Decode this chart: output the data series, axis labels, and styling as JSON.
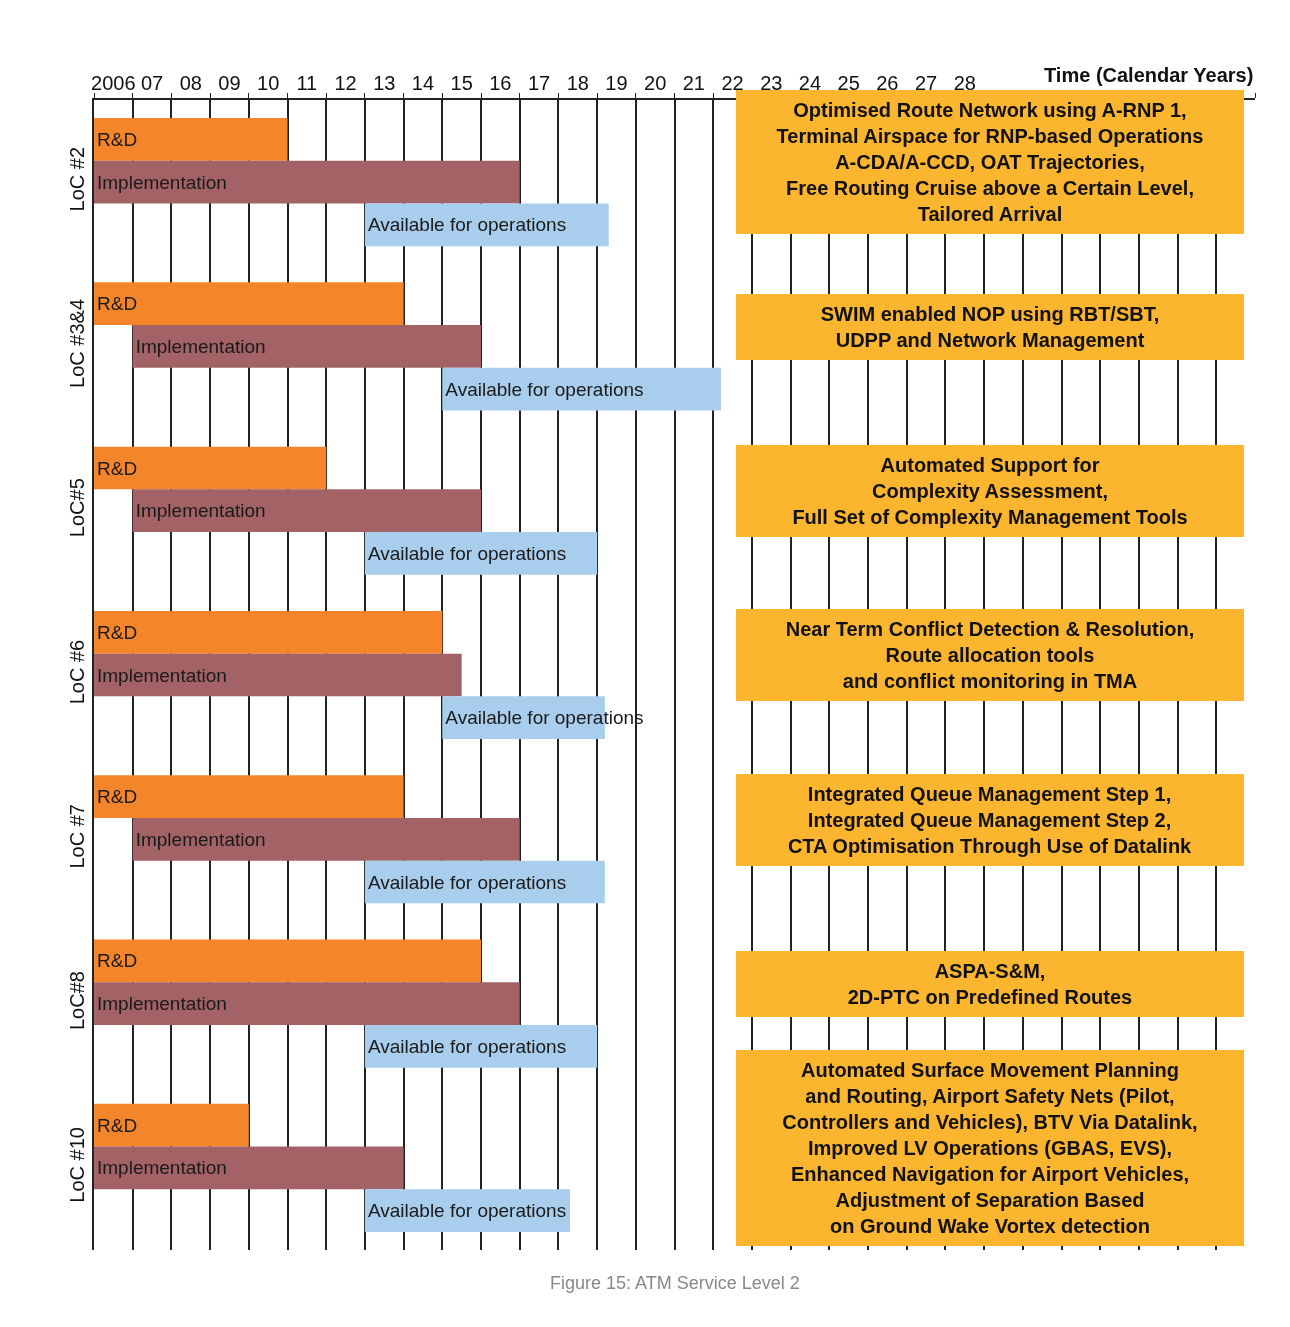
{
  "chart_data": {
    "type": "bar",
    "orientation": "horizontal",
    "xlabel": "Time (Calendar Years)",
    "categories": [
      "LoC #2",
      "LoC #3&4",
      "LoC#5",
      "LoC #6",
      "LoC #7",
      "LoC#8",
      "LoC #10"
    ],
    "series": [
      {
        "name": "R&D",
        "color": "#f5852a",
        "base": [
          2005.5,
          2005.5,
          2005.5,
          2005.5,
          2005.5,
          2005.5,
          2005.5
        ],
        "values": [
          5,
          8,
          6,
          9,
          8,
          10,
          4
        ]
      },
      {
        "name": "Implementation",
        "color": "#a36266",
        "base": [
          2005.5,
          2006.5,
          2006.5,
          2005.5,
          2006.5,
          2005.5,
          2005.5
        ],
        "values": [
          11,
          9,
          9,
          9.5,
          10,
          11,
          8
        ]
      },
      {
        "name": "Available for operations",
        "color": "#a9cdec",
        "base": [
          2012.5,
          2014.5,
          2012.5,
          2014.5,
          2012.5,
          2012.5,
          2012.5
        ],
        "values": [
          6.3,
          7.2,
          6,
          4.2,
          6.2,
          6,
          5.3
        ]
      }
    ],
    "xlim": [
      2005.5,
      2035.5
    ],
    "xticks": [
      2006,
      {
        "value": 2007,
        "label": "07"
      },
      {
        "value": 2008,
        "label": "08"
      },
      {
        "value": 2009,
        "label": "09"
      },
      {
        "value": 2010,
        "label": "10"
      },
      {
        "value": 2011,
        "label": "11"
      },
      {
        "value": 2012,
        "label": "12"
      },
      {
        "value": 2013,
        "label": "13"
      },
      {
        "value": 2014,
        "label": "14"
      },
      {
        "value": 2015,
        "label": "15"
      },
      {
        "value": 2016,
        "label": "16"
      },
      {
        "value": 2017,
        "label": "17"
      },
      {
        "value": 2018,
        "label": "18"
      },
      {
        "value": 2019,
        "label": "19"
      },
      {
        "value": 2020,
        "label": "20"
      },
      {
        "value": 2021,
        "label": "21"
      },
      {
        "value": 2022,
        "label": "22"
      },
      {
        "value": 2023,
        "label": "23"
      },
      {
        "value": 2024,
        "label": "24"
      },
      {
        "value": 2025,
        "label": "25"
      },
      {
        "value": 2026,
        "label": "26"
      },
      {
        "value": 2027,
        "label": "27"
      },
      {
        "value": 2028,
        "label": "28"
      }
    ],
    "grid": "x",
    "legend": false,
    "annotations": [
      "Optimised Route Network using A-RNP 1,\nTerminal Airspace for RNP-based Operations\nA-CDA/A-CCD, OAT Trajectories,\nFree Routing Cruise above a Certain Level,\nTailored Arrival",
      "SWIM enabled NOP using RBT/SBT,\nUDPP and Network Management",
      "Automated Support for\nComplexity Assessment,\nFull Set of Complexity Management Tools",
      "Near Term Conflict Detection & Resolution,\nRoute allocation tools\nand conflict monitoring in TMA",
      "Integrated Queue Management Step 1,\nIntegrated Queue Management Step 2,\nCTA Optimisation Through Use of Datalink",
      "ASPA-S&M,\n2D-PTC on Predefined Routes",
      "Automated Surface Movement Planning\nand Routing, Airport Safety Nets (Pilot,\nControllers and Vehicles), BTV Via Datalink,\nImproved LV Operations (GBAS, EVS),\nEnhanced Navigation for Airport Vehicles,\nAdjustment of Separation Based\non Ground Wake Vortex detection",
      "Figure 15: ATM Service Level 2"
    ]
  }
}
